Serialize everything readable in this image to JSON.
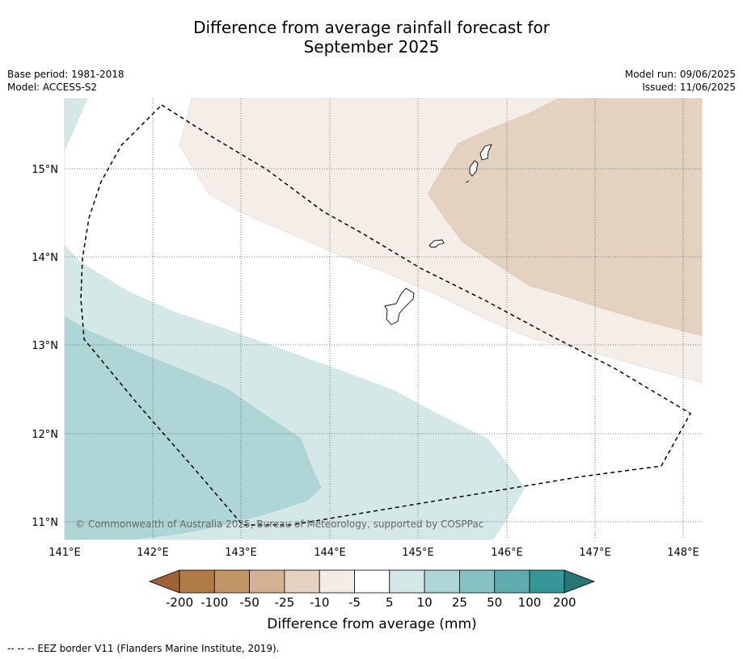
{
  "title": {
    "line1": "Difference from average rainfall forecast for",
    "line2": "September 2025"
  },
  "meta_left": {
    "base_period": "Base period: 1981-2018",
    "model": "Model: ACCESS-S2"
  },
  "meta_right": {
    "model_run": "Model run: 09/06/2025",
    "issued": "Issued: 11/06/2025"
  },
  "map": {
    "lon_ticks": [
      "141°E",
      "142°E",
      "143°E",
      "144°E",
      "145°E",
      "146°E",
      "147°E",
      "148°E"
    ],
    "lat_ticks": [
      "15°N",
      "14°N",
      "13°N",
      "12°N",
      "11°N"
    ],
    "copyright": "© Commonwealth of Australia 2025, Bureau of Meteorology, supported by COSPPac",
    "colors": {
      "dry_light": "#f5ede8",
      "dry_mid": "#e4d1c0",
      "wet_light": "#d4e8e7",
      "wet_mid": "#aed6d6"
    }
  },
  "colorbar": {
    "labels": [
      "-200",
      "-100",
      "-50",
      "-25",
      "-10",
      "-5",
      "5",
      "10",
      "25",
      "50",
      "100",
      "200"
    ],
    "colors": [
      "#9e6236",
      "#b07a45",
      "#c19566",
      "#d4b192",
      "#e4d1c0",
      "#f4ece6",
      "#ffffff",
      "#d4e8e7",
      "#aed6d6",
      "#86c2c3",
      "#5eacad",
      "#359797",
      "#267676"
    ],
    "label": "Difference from average (mm)"
  },
  "footer": {
    "legend": "--  --  -- EEZ border V11 (Flanders Marine Institute, 2019)."
  }
}
